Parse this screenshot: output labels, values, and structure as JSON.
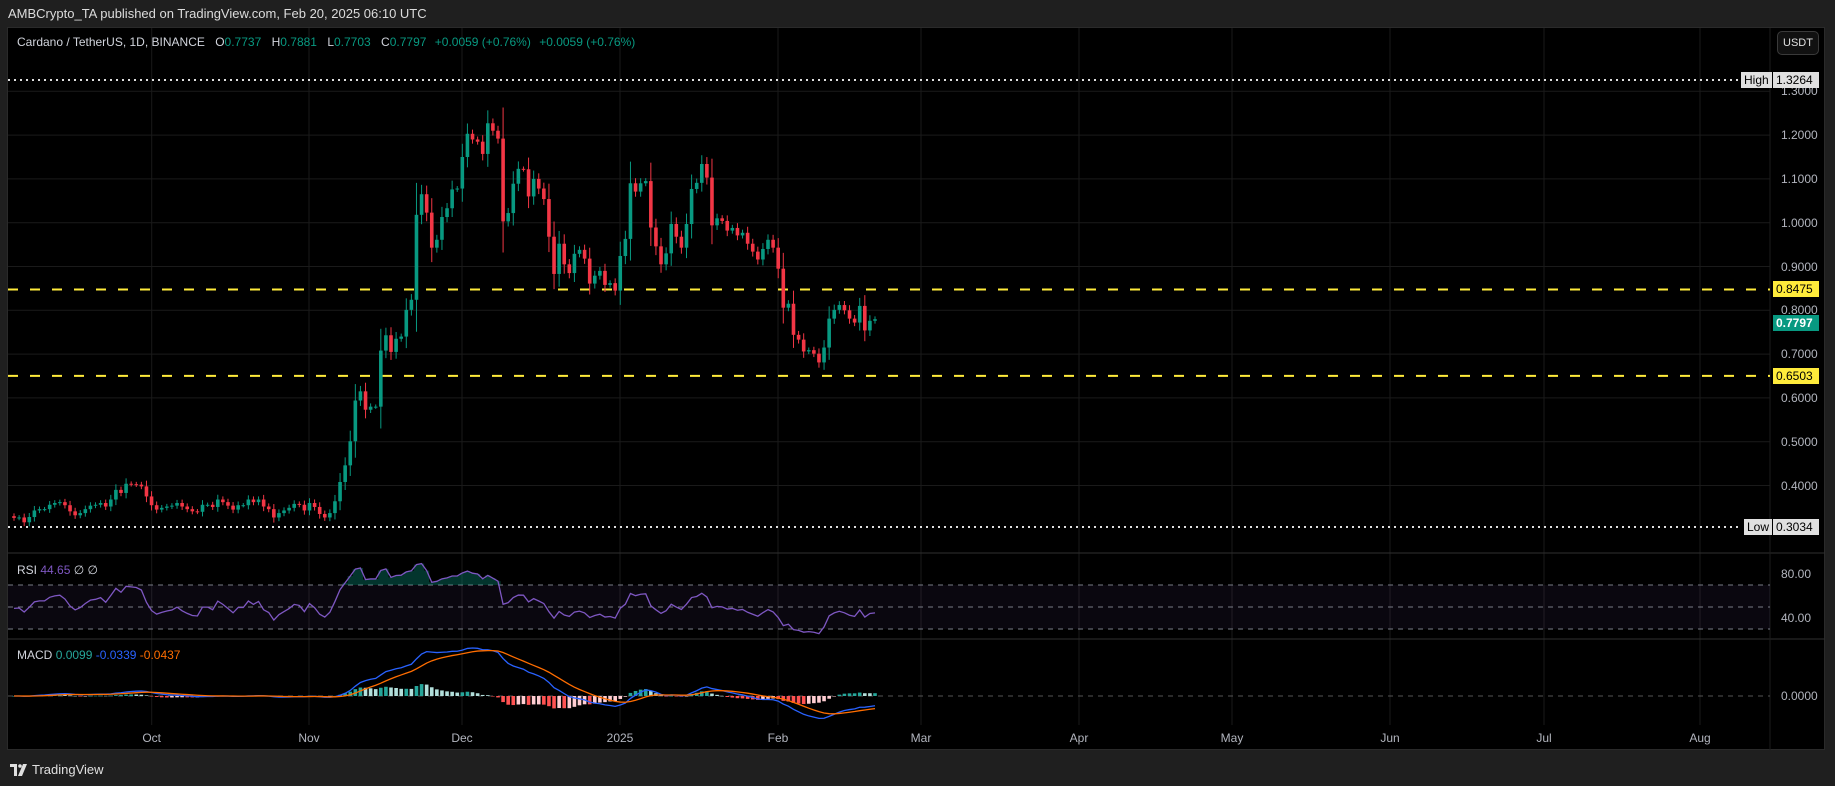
{
  "publish_line": "AMBCrypto_TA published on TradingView.com, Feb 20, 2025 06:10 UTC",
  "symbol": {
    "title": "Cardano / TetherUS, 1D, BINANCE",
    "o_label": "O",
    "o": "0.7737",
    "h_label": "H",
    "h": "0.7881",
    "l_label": "L",
    "l": "0.7703",
    "c_label": "C",
    "c": "0.7797",
    "change": "+0.0059 (+0.76%)",
    "change2": "+0.0059 (+0.76%)"
  },
  "currency_button": "USDT",
  "price_axis": [
    "1.3000",
    "1.2000",
    "1.1000",
    "1.0000",
    "0.9000",
    "0.8000",
    "0.7000",
    "0.6000",
    "0.5000",
    "0.4000"
  ],
  "markers": {
    "high_label": "High",
    "high_value": "1.3264",
    "low_label": "Low",
    "low_value": "0.3034",
    "resistance": "0.8475",
    "support": "0.6503",
    "last_price": "0.7797"
  },
  "rsi": {
    "label": "RSI",
    "value": "44.65",
    "extra1": "∅",
    "extra2": "∅",
    "axis": [
      "80.00",
      "40.00"
    ]
  },
  "macd": {
    "label": "MACD",
    "hist": "0.0099",
    "macd": "-0.0339",
    "signal": "-0.0437",
    "axis": "0.0000"
  },
  "time_axis": [
    "Oct",
    "Nov",
    "Dec",
    "2025",
    "Feb",
    "Mar",
    "Apr",
    "May",
    "Jun",
    "Jul",
    "Aug"
  ],
  "brand": "TradingView",
  "colors": {
    "up": "#089981",
    "down": "#F23645",
    "level": "#FFEB3B",
    "rsi": "#7E57C2",
    "macd": "#2962FF",
    "signal": "#FF6D00"
  },
  "chart_data": {
    "type": "candlestick",
    "interval": "1D",
    "first_open": 0.33,
    "closes": [
      0.326,
      0.327,
      0.316,
      0.328,
      0.343,
      0.346,
      0.346,
      0.356,
      0.36,
      0.362,
      0.355,
      0.341,
      0.332,
      0.337,
      0.346,
      0.354,
      0.356,
      0.36,
      0.352,
      0.368,
      0.39,
      0.383,
      0.404,
      0.403,
      0.402,
      0.398,
      0.375,
      0.355,
      0.345,
      0.349,
      0.352,
      0.354,
      0.36,
      0.352,
      0.346,
      0.341,
      0.34,
      0.356,
      0.356,
      0.351,
      0.368,
      0.362,
      0.354,
      0.345,
      0.355,
      0.355,
      0.368,
      0.362,
      0.368,
      0.352,
      0.346,
      0.327,
      0.337,
      0.343,
      0.349,
      0.358,
      0.356,
      0.343,
      0.36,
      0.351,
      0.335,
      0.327,
      0.337,
      0.364,
      0.408,
      0.446,
      0.501,
      0.594,
      0.615,
      0.573,
      0.58,
      0.58,
      0.708,
      0.743,
      0.705,
      0.735,
      0.74,
      0.801,
      0.824,
      1.018,
      1.065,
      1.023,
      0.943,
      0.961,
      1.013,
      1.033,
      1.076,
      1.078,
      1.15,
      1.203,
      1.19,
      1.185,
      1.157,
      1.227,
      1.21,
      1.192,
      1.003,
      1.022,
      1.089,
      1.123,
      1.122,
      1.06,
      1.1,
      1.078,
      1.054,
      0.968,
      0.883,
      0.952,
      0.905,
      0.885,
      0.929,
      0.938,
      0.918,
      0.861,
      0.879,
      0.89,
      0.858,
      0.862,
      0.845,
      0.924,
      0.963,
      1.09,
      1.071,
      1.09,
      1.095,
      0.989,
      0.946,
      0.905,
      0.93,
      0.997,
      0.968,
      0.943,
      0.997,
      1.077,
      1.091,
      1.134,
      1.103,
      0.994,
      1.01,
      1.004,
      0.982,
      0.988,
      0.971,
      0.977,
      0.952,
      0.934,
      0.916,
      0.94,
      0.961,
      0.943,
      0.895,
      0.806,
      0.815,
      0.744,
      0.733,
      0.706,
      0.709,
      0.701,
      0.681,
      0.715,
      0.781,
      0.801,
      0.812,
      0.8,
      0.781,
      0.772,
      0.81,
      0.754,
      0.776,
      0.7797
    ],
    "ylim": [
      0.3034,
      1.3264
    ],
    "horizontal_levels": [
      0.8475,
      0.6503
    ],
    "rsi_levels": [
      70,
      50,
      30
    ],
    "grid": true
  }
}
